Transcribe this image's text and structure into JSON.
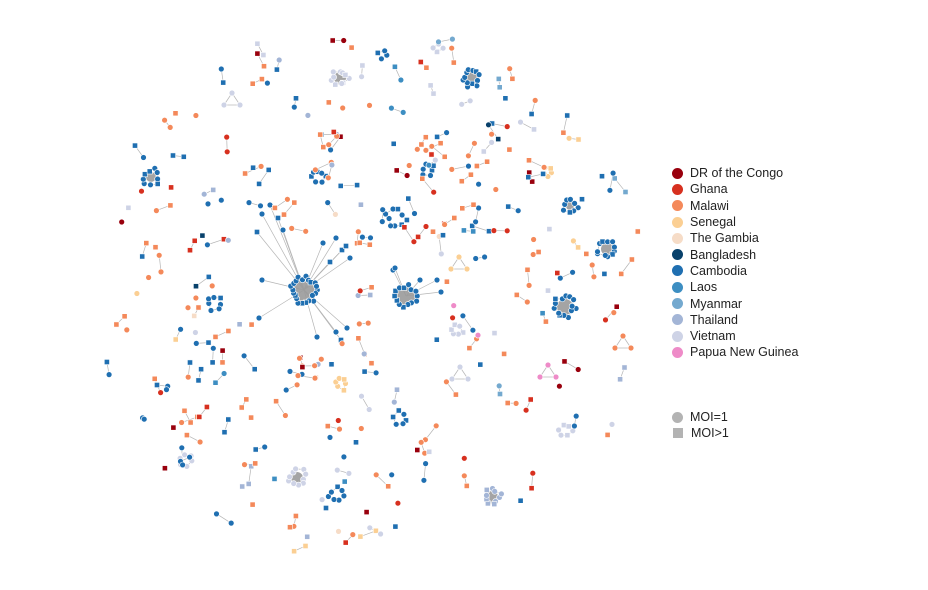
{
  "legend": {
    "countries": [
      {
        "label": "DR of the Congo",
        "color": "#99000d"
      },
      {
        "label": "Ghana",
        "color": "#d7301f"
      },
      {
        "label": "Malawi",
        "color": "#f4895a"
      },
      {
        "label": "Senegal",
        "color": "#fbcf93"
      },
      {
        "label": "The Gambia",
        "color": "#f6dcc7"
      },
      {
        "label": "Bangladesh",
        "color": "#08416b"
      },
      {
        "label": "Cambodia",
        "color": "#1f6fb1"
      },
      {
        "label": "Laos",
        "color": "#3d8ec2"
      },
      {
        "label": "Myanmar",
        "color": "#74a9cf"
      },
      {
        "label": "Thailand",
        "color": "#a3b5d6"
      },
      {
        "label": "Vietnam",
        "color": "#ced3e6"
      },
      {
        "label": "Papua New Guinea",
        "color": "#ee8bc8"
      }
    ],
    "shapes": [
      {
        "label": "MOI=1",
        "shape": "circle",
        "color": "#b3b3b3"
      },
      {
        "label": "MOI>1",
        "shape": "square",
        "color": "#b3b3b3"
      }
    ]
  }
}
